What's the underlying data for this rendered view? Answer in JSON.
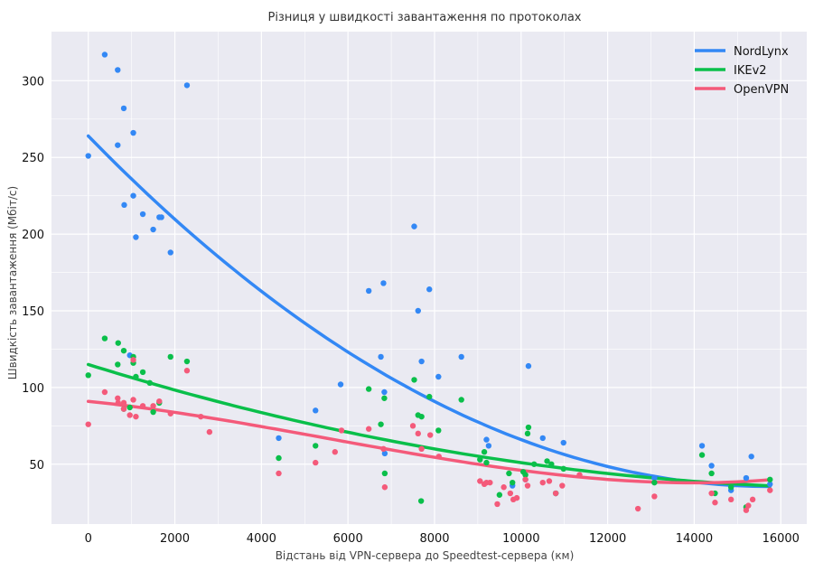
{
  "chart_data": {
    "type": "scatter",
    "title": "Різниця у швидкості завантаження по протоколах",
    "xlabel": "Відстань від VPN-сервера до Speedtest-сервера (км)",
    "ylabel": "Швидкість завантаження (Мбіт/с)",
    "xlim": [
      -850,
      16600
    ],
    "ylim": [
      11,
      332
    ],
    "xticks": [
      0,
      2000,
      4000,
      6000,
      8000,
      10000,
      12000,
      14000,
      16000
    ],
    "yticks": [
      50,
      100,
      150,
      200,
      250,
      300
    ],
    "grid": true,
    "legend_position": "top-right",
    "series": [
      {
        "name": "NordLynx",
        "color": "#3388f5",
        "trend": [
          264,
          -0.029,
          9.2e-07
        ],
        "points": [
          [
            0,
            251
          ],
          [
            380,
            317
          ],
          [
            680,
            307
          ],
          [
            680,
            258
          ],
          [
            820,
            282
          ],
          [
            830,
            219
          ],
          [
            960,
            121
          ],
          [
            1040,
            266
          ],
          [
            1040,
            225
          ],
          [
            1100,
            198
          ],
          [
            1260,
            213
          ],
          [
            1500,
            203
          ],
          [
            1640,
            211
          ],
          [
            1690,
            211
          ],
          [
            1900,
            188
          ],
          [
            2280,
            297
          ],
          [
            4400,
            67
          ],
          [
            5250,
            85
          ],
          [
            5830,
            102
          ],
          [
            6480,
            163
          ],
          [
            6760,
            120
          ],
          [
            6820,
            168
          ],
          [
            6840,
            97
          ],
          [
            6850,
            57
          ],
          [
            7530,
            205
          ],
          [
            7620,
            150
          ],
          [
            7700,
            117
          ],
          [
            7880,
            164
          ],
          [
            8090,
            107
          ],
          [
            8620,
            120
          ],
          [
            9200,
            66
          ],
          [
            9250,
            62
          ],
          [
            9800,
            36
          ],
          [
            10100,
            40
          ],
          [
            10170,
            114
          ],
          [
            10500,
            67
          ],
          [
            10800,
            31
          ],
          [
            10980,
            64
          ],
          [
            13080,
            41
          ],
          [
            14180,
            62
          ],
          [
            14400,
            49
          ],
          [
            14850,
            33
          ],
          [
            15200,
            41
          ],
          [
            15320,
            55
          ],
          [
            15750,
            37
          ]
        ]
      },
      {
        "name": "IKEv2",
        "color": "#0abf4a",
        "trend": [
          115,
          -0.0088,
          2.4e-07
        ],
        "points": [
          [
            0,
            108
          ],
          [
            380,
            132
          ],
          [
            680,
            115
          ],
          [
            690,
            129
          ],
          [
            820,
            124
          ],
          [
            820,
            86
          ],
          [
            960,
            87
          ],
          [
            1040,
            120
          ],
          [
            1040,
            116
          ],
          [
            1100,
            107
          ],
          [
            1260,
            110
          ],
          [
            1420,
            103
          ],
          [
            1500,
            84
          ],
          [
            1640,
            90
          ],
          [
            1900,
            120
          ],
          [
            2280,
            117
          ],
          [
            4400,
            54
          ],
          [
            5250,
            62
          ],
          [
            6480,
            99
          ],
          [
            6760,
            76
          ],
          [
            6840,
            93
          ],
          [
            6850,
            44
          ],
          [
            7530,
            105
          ],
          [
            7620,
            82
          ],
          [
            7690,
            26
          ],
          [
            7700,
            81
          ],
          [
            7880,
            94
          ],
          [
            8090,
            72
          ],
          [
            8620,
            92
          ],
          [
            9050,
            53
          ],
          [
            9150,
            58
          ],
          [
            9200,
            51
          ],
          [
            9500,
            30
          ],
          [
            9720,
            44
          ],
          [
            9800,
            38
          ],
          [
            10050,
            45
          ],
          [
            10100,
            43
          ],
          [
            10150,
            70
          ],
          [
            10170,
            74
          ],
          [
            10300,
            50
          ],
          [
            10600,
            52
          ],
          [
            10700,
            50
          ],
          [
            10800,
            31
          ],
          [
            10980,
            47
          ],
          [
            13080,
            38
          ],
          [
            14180,
            56
          ],
          [
            14400,
            44
          ],
          [
            14480,
            31
          ],
          [
            14850,
            35
          ],
          [
            15200,
            22
          ],
          [
            15750,
            40
          ]
        ]
      },
      {
        "name": "OpenVPN",
        "color": "#f45a7a",
        "trend": [
          91,
          -0.0029,
          -4e-07,
          2.4e-11
        ],
        "points": [
          [
            0,
            76
          ],
          [
            380,
            97
          ],
          [
            680,
            93
          ],
          [
            690,
            90
          ],
          [
            820,
            86
          ],
          [
            820,
            90
          ],
          [
            960,
            82
          ],
          [
            1040,
            92
          ],
          [
            1040,
            118
          ],
          [
            1100,
            81
          ],
          [
            1260,
            88
          ],
          [
            1500,
            88
          ],
          [
            1640,
            91
          ],
          [
            1900,
            83
          ],
          [
            2280,
            111
          ],
          [
            2600,
            81
          ],
          [
            2800,
            71
          ],
          [
            4400,
            44
          ],
          [
            5250,
            51
          ],
          [
            5700,
            58
          ],
          [
            5850,
            72
          ],
          [
            6480,
            73
          ],
          [
            6820,
            60
          ],
          [
            6850,
            35
          ],
          [
            7500,
            75
          ],
          [
            7620,
            70
          ],
          [
            7700,
            60
          ],
          [
            7900,
            69
          ],
          [
            8100,
            55
          ],
          [
            9050,
            39
          ],
          [
            9150,
            37
          ],
          [
            9200,
            38
          ],
          [
            9280,
            38
          ],
          [
            9450,
            24
          ],
          [
            9600,
            35
          ],
          [
            9750,
            31
          ],
          [
            9820,
            27
          ],
          [
            9900,
            28
          ],
          [
            10100,
            40
          ],
          [
            10150,
            36
          ],
          [
            10500,
            38
          ],
          [
            10650,
            39
          ],
          [
            10800,
            31
          ],
          [
            10950,
            36
          ],
          [
            11350,
            43
          ],
          [
            12700,
            21
          ],
          [
            13080,
            29
          ],
          [
            14400,
            31
          ],
          [
            14480,
            25
          ],
          [
            14850,
            27
          ],
          [
            15200,
            20
          ],
          [
            15250,
            23
          ],
          [
            15350,
            27
          ],
          [
            15750,
            33
          ]
        ]
      }
    ]
  }
}
